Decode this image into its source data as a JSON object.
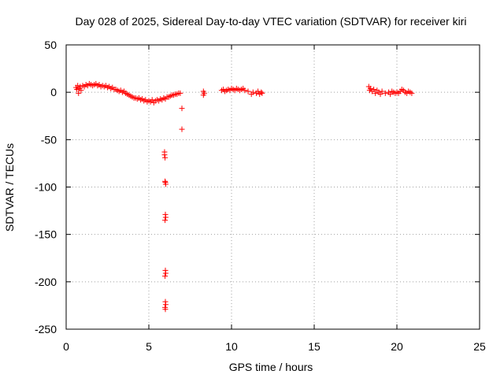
{
  "chart_data": {
    "type": "scatter",
    "title": "Day 028 of 2025, Sidereal Day-to-day VTEC variation (SDTVAR) for receiver kiri",
    "xlabel": "GPS time / hours",
    "ylabel": "SDTVAR / TECUs",
    "xlim": [
      0,
      25
    ],
    "ylim": [
      -250,
      50
    ],
    "xticks": [
      "0",
      "5",
      "10",
      "15",
      "20",
      "25"
    ],
    "yticks": [
      "50",
      "0",
      "-50",
      "-100",
      "-150",
      "-200",
      "-250"
    ],
    "grid": true,
    "marker": "plus",
    "series_color": "#ff0000",
    "points": [
      [
        0.6,
        5
      ],
      [
        0.65,
        3
      ],
      [
        0.7,
        7
      ],
      [
        0.75,
        -1
      ],
      [
        0.8,
        4
      ],
      [
        0.85,
        6
      ],
      [
        0.9,
        2
      ],
      [
        1.0,
        7
      ],
      [
        1.1,
        6
      ],
      [
        1.2,
        8
      ],
      [
        1.3,
        7
      ],
      [
        1.4,
        9
      ],
      [
        1.5,
        8
      ],
      [
        1.6,
        7
      ],
      [
        1.7,
        8
      ],
      [
        1.8,
        9
      ],
      [
        1.9,
        7
      ],
      [
        2.0,
        8
      ],
      [
        2.1,
        6
      ],
      [
        2.2,
        7
      ],
      [
        2.3,
        6
      ],
      [
        2.4,
        7
      ],
      [
        2.5,
        5
      ],
      [
        2.6,
        6
      ],
      [
        2.7,
        4
      ],
      [
        2.8,
        5
      ],
      [
        2.9,
        3
      ],
      [
        3.0,
        3
      ],
      [
        3.1,
        2
      ],
      [
        3.2,
        1
      ],
      [
        3.3,
        2
      ],
      [
        3.4,
        0
      ],
      [
        3.5,
        1
      ],
      [
        3.6,
        -1
      ],
      [
        3.7,
        -2
      ],
      [
        3.8,
        -3
      ],
      [
        3.9,
        -4
      ],
      [
        4.0,
        -5
      ],
      [
        4.1,
        -6
      ],
      [
        4.2,
        -6
      ],
      [
        4.3,
        -7
      ],
      [
        4.4,
        -6
      ],
      [
        4.5,
        -8
      ],
      [
        4.6,
        -7
      ],
      [
        4.7,
        -9
      ],
      [
        4.8,
        -8
      ],
      [
        4.9,
        -10
      ],
      [
        5.0,
        -9
      ],
      [
        5.1,
        -10
      ],
      [
        5.2,
        -8
      ],
      [
        5.3,
        -11
      ],
      [
        5.4,
        -9
      ],
      [
        5.5,
        -8
      ],
      [
        5.6,
        -9
      ],
      [
        5.7,
        -7
      ],
      [
        5.8,
        -8
      ],
      [
        5.9,
        -6
      ],
      [
        6.0,
        -7
      ],
      [
        6.1,
        -5
      ],
      [
        6.2,
        -5
      ],
      [
        6.3,
        -4
      ],
      [
        6.4,
        -3
      ],
      [
        6.5,
        -3
      ],
      [
        6.6,
        -2
      ],
      [
        6.7,
        -2
      ],
      [
        6.8,
        -1
      ],
      [
        6.9,
        -1
      ],
      [
        7.0,
        -17
      ],
      [
        7.0,
        -39
      ],
      [
        5.95,
        -63
      ],
      [
        5.95,
        -66
      ],
      [
        5.98,
        -69
      ],
      [
        6.0,
        -95
      ],
      [
        6.02,
        -97
      ],
      [
        5.98,
        -94
      ],
      [
        6.0,
        -129
      ],
      [
        6.02,
        -132
      ],
      [
        5.98,
        -135
      ],
      [
        6.0,
        -188
      ],
      [
        6.02,
        -191
      ],
      [
        5.98,
        -194
      ],
      [
        6.0,
        -221
      ],
      [
        6.02,
        -224
      ],
      [
        5.98,
        -227
      ],
      [
        6.0,
        -229
      ],
      [
        8.3,
        1
      ],
      [
        8.3,
        -3
      ],
      [
        8.35,
        -1
      ],
      [
        9.4,
        2
      ],
      [
        9.5,
        3
      ],
      [
        9.6,
        1
      ],
      [
        9.7,
        2
      ],
      [
        9.8,
        3
      ],
      [
        9.9,
        2
      ],
      [
        10.0,
        4
      ],
      [
        10.1,
        3
      ],
      [
        10.2,
        2
      ],
      [
        10.3,
        4
      ],
      [
        10.4,
        3
      ],
      [
        10.5,
        2
      ],
      [
        10.6,
        3
      ],
      [
        10.7,
        4
      ],
      [
        10.8,
        2
      ],
      [
        11.0,
        1
      ],
      [
        11.2,
        -2
      ],
      [
        11.3,
        0
      ],
      [
        11.5,
        -1
      ],
      [
        11.6,
        1
      ],
      [
        11.7,
        -2
      ],
      [
        11.8,
        0
      ],
      [
        11.85,
        -1
      ],
      [
        18.3,
        6
      ],
      [
        18.35,
        2
      ],
      [
        18.4,
        4
      ],
      [
        18.5,
        1
      ],
      [
        18.6,
        3
      ],
      [
        18.7,
        -1
      ],
      [
        18.8,
        2
      ],
      [
        18.9,
        0
      ],
      [
        19.0,
        -2
      ],
      [
        19.1,
        1
      ],
      [
        19.3,
        -1
      ],
      [
        19.5,
        0
      ],
      [
        19.6,
        -2
      ],
      [
        19.7,
        1
      ],
      [
        19.8,
        0
      ],
      [
        19.9,
        -1
      ],
      [
        20.0,
        0
      ],
      [
        20.1,
        -1
      ],
      [
        20.2,
        1
      ],
      [
        20.3,
        3
      ],
      [
        20.4,
        2
      ],
      [
        20.5,
        0
      ],
      [
        20.6,
        -1
      ],
      [
        20.7,
        1
      ],
      [
        20.8,
        0
      ],
      [
        20.9,
        -1
      ]
    ]
  }
}
